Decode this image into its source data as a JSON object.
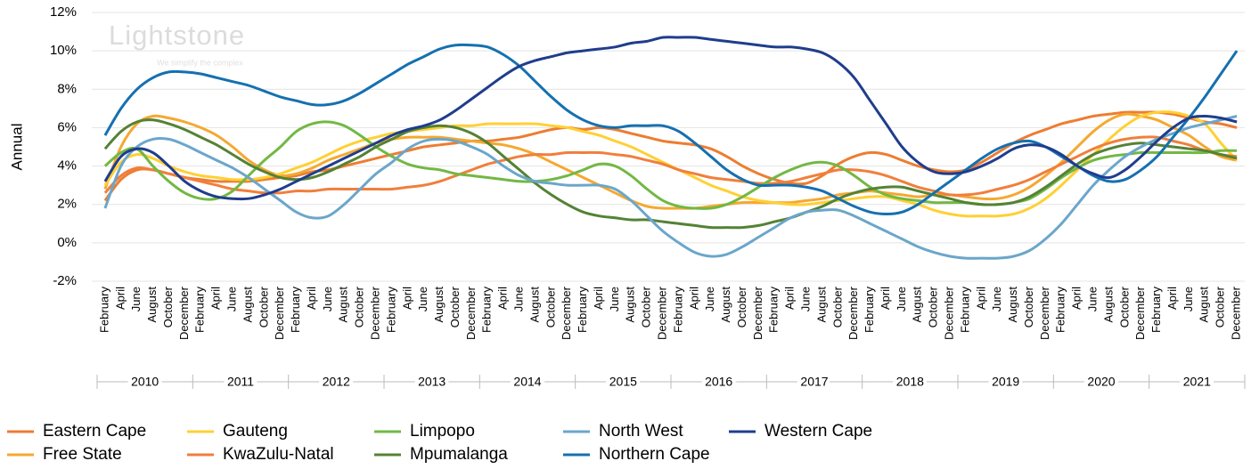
{
  "chart_data": {
    "type": "line",
    "y_label": "Annual",
    "watermark": {
      "title": "Lightstone",
      "subtitle": "We simplify the complex"
    },
    "categories": [
      "February",
      "April",
      "June",
      "August",
      "October",
      "December",
      "February",
      "April",
      "June",
      "August",
      "October",
      "December",
      "February",
      "April",
      "June",
      "August",
      "October",
      "December",
      "February",
      "April",
      "June",
      "August",
      "October",
      "December",
      "February",
      "April",
      "June",
      "August",
      "October",
      "December",
      "February",
      "April",
      "June",
      "August",
      "October",
      "December",
      "February",
      "April",
      "June",
      "August",
      "October",
      "December",
      "February",
      "April",
      "June",
      "August",
      "October",
      "December",
      "February",
      "April",
      "June",
      "August",
      "October",
      "December",
      "February",
      "April",
      "June",
      "August",
      "October",
      "December",
      "February",
      "April",
      "June",
      "August",
      "October",
      "December",
      "February",
      "April",
      "June",
      "August",
      "October",
      "December"
    ],
    "x_groups": [
      "2010",
      "2011",
      "2012",
      "2013",
      "2014",
      "2015",
      "2016",
      "2017",
      "2018",
      "2019",
      "2020",
      "2021"
    ],
    "ylim": [
      -2,
      12
    ],
    "yticks": [
      {
        "value": -2,
        "label": "-2%"
      },
      {
        "value": 0,
        "label": "0%"
      },
      {
        "value": 2,
        "label": "2%"
      },
      {
        "value": 4,
        "label": "4%"
      },
      {
        "value": 6,
        "label": "6%"
      },
      {
        "value": 8,
        "label": "8%"
      },
      {
        "value": 10,
        "label": "10%"
      },
      {
        "value": 12,
        "label": "12%"
      }
    ],
    "grid": true,
    "legend_position": "bottom",
    "series": [
      {
        "name": "Eastern Cape",
        "color": "#ed7d31",
        "values": [
          2.2,
          3.3,
          3.8,
          3.8,
          3.6,
          3.4,
          3.3,
          3.2,
          3.2,
          3.2,
          3.3,
          3.4,
          3.5,
          3.7,
          3.8,
          4.0,
          4.2,
          4.4,
          4.6,
          4.8,
          5.0,
          5.1,
          5.2,
          5.3,
          5.3,
          5.4,
          5.5,
          5.7,
          5.9,
          6.0,
          5.9,
          6.0,
          5.9,
          5.7,
          5.5,
          5.3,
          5.2,
          5.1,
          4.9,
          4.5,
          4.0,
          3.6,
          3.3,
          3.1,
          3.1,
          3.5,
          4.1,
          4.5,
          4.7,
          4.6,
          4.3,
          4.0,
          3.8,
          3.7,
          3.8,
          4.2,
          4.7,
          5.2,
          5.6,
          5.9,
          6.2,
          6.4,
          6.6,
          6.7,
          6.8,
          6.8,
          6.8,
          6.7,
          6.5,
          6.3,
          6.2,
          6.0
        ]
      },
      {
        "name": "Free State",
        "color": "#f5a830",
        "values": [
          2.8,
          5.0,
          6.2,
          6.6,
          6.5,
          6.3,
          6.0,
          5.6,
          5.0,
          4.3,
          3.8,
          3.5,
          3.6,
          3.9,
          4.3,
          4.6,
          4.9,
          5.2,
          5.4,
          5.5,
          5.5,
          5.5,
          5.4,
          5.3,
          5.2,
          5.1,
          4.9,
          4.6,
          4.2,
          3.8,
          3.4,
          3.0,
          2.6,
          2.2,
          1.9,
          1.8,
          1.8,
          1.8,
          1.9,
          2.0,
          2.1,
          2.1,
          2.1,
          2.1,
          2.2,
          2.3,
          2.5,
          2.6,
          2.7,
          2.6,
          2.5,
          2.4,
          2.5,
          2.5,
          2.4,
          2.3,
          2.3,
          2.5,
          2.9,
          3.5,
          4.2,
          5.0,
          5.8,
          6.4,
          6.7,
          6.6,
          6.4,
          6.0,
          5.6,
          5.0,
          4.5,
          4.3
        ]
      },
      {
        "name": "Gauteng",
        "color": "#ffd033",
        "values": [
          3.0,
          4.2,
          4.6,
          4.4,
          4.0,
          3.7,
          3.5,
          3.4,
          3.3,
          3.3,
          3.4,
          3.6,
          3.9,
          4.2,
          4.6,
          5.0,
          5.3,
          5.5,
          5.7,
          5.8,
          5.9,
          6.0,
          6.1,
          6.1,
          6.2,
          6.2,
          6.2,
          6.2,
          6.1,
          6.0,
          5.8,
          5.6,
          5.3,
          5.0,
          4.6,
          4.2,
          3.8,
          3.4,
          3.0,
          2.7,
          2.4,
          2.2,
          2.1,
          2.0,
          2.0,
          2.1,
          2.2,
          2.3,
          2.4,
          2.4,
          2.2,
          2.0,
          1.7,
          1.5,
          1.4,
          1.4,
          1.4,
          1.5,
          1.8,
          2.3,
          3.0,
          3.8,
          4.6,
          5.4,
          6.1,
          6.6,
          6.8,
          6.8,
          6.6,
          6.2,
          5.2,
          4.3
        ]
      },
      {
        "name": "KwaZulu-Natal",
        "color": "#f07f3c",
        "values": [
          2.6,
          3.5,
          3.9,
          3.8,
          3.6,
          3.4,
          3.2,
          3.0,
          2.8,
          2.7,
          2.6,
          2.6,
          2.7,
          2.7,
          2.8,
          2.8,
          2.8,
          2.8,
          2.8,
          2.9,
          3.0,
          3.2,
          3.5,
          3.8,
          4.1,
          4.3,
          4.5,
          4.6,
          4.6,
          4.7,
          4.7,
          4.7,
          4.6,
          4.5,
          4.3,
          4.1,
          3.8,
          3.6,
          3.4,
          3.3,
          3.2,
          3.1,
          3.1,
          3.2,
          3.4,
          3.6,
          3.8,
          3.8,
          3.7,
          3.5,
          3.2,
          2.9,
          2.7,
          2.5,
          2.5,
          2.6,
          2.8,
          3.0,
          3.3,
          3.7,
          4.1,
          4.5,
          4.9,
          5.2,
          5.4,
          5.5,
          5.5,
          5.3,
          5.1,
          4.8,
          4.6,
          4.5
        ]
      },
      {
        "name": "Limpopo",
        "color": "#72b844",
        "values": [
          4.0,
          4.7,
          4.9,
          4.0,
          3.2,
          2.6,
          2.3,
          2.3,
          2.7,
          3.5,
          4.3,
          5.0,
          5.8,
          6.2,
          6.3,
          6.1,
          5.6,
          5.0,
          4.5,
          4.1,
          3.9,
          3.8,
          3.6,
          3.5,
          3.4,
          3.3,
          3.2,
          3.2,
          3.3,
          3.5,
          3.8,
          4.1,
          4.0,
          3.5,
          2.8,
          2.2,
          1.9,
          1.8,
          1.8,
          2.0,
          2.4,
          2.9,
          3.4,
          3.8,
          4.1,
          4.2,
          4.0,
          3.5,
          2.9,
          2.5,
          2.3,
          2.2,
          2.1,
          2.1,
          2.1,
          2.0,
          2.0,
          2.1,
          2.3,
          2.8,
          3.4,
          3.9,
          4.3,
          4.5,
          4.6,
          4.7,
          4.7,
          4.7,
          4.7,
          4.7,
          4.8,
          4.8
        ]
      },
      {
        "name": "Mpumalanga",
        "color": "#548235",
        "values": [
          4.9,
          5.8,
          6.3,
          6.4,
          6.2,
          5.9,
          5.5,
          5.1,
          4.6,
          4.1,
          3.7,
          3.4,
          3.3,
          3.4,
          3.7,
          4.1,
          4.5,
          5.0,
          5.4,
          5.8,
          6.0,
          6.1,
          6.0,
          5.7,
          5.2,
          4.5,
          3.8,
          3.1,
          2.5,
          2.0,
          1.6,
          1.4,
          1.3,
          1.2,
          1.2,
          1.1,
          1.0,
          0.9,
          0.8,
          0.8,
          0.8,
          0.9,
          1.1,
          1.3,
          1.6,
          1.9,
          2.3,
          2.6,
          2.8,
          2.9,
          2.9,
          2.7,
          2.5,
          2.3,
          2.1,
          2.0,
          2.0,
          2.1,
          2.4,
          2.9,
          3.5,
          4.1,
          4.6,
          4.9,
          5.1,
          5.2,
          5.1,
          5.0,
          4.9,
          4.8,
          4.6,
          4.4
        ]
      },
      {
        "name": "North West",
        "color": "#6ba6cb",
        "values": [
          1.8,
          4.0,
          5.0,
          5.4,
          5.4,
          5.1,
          4.7,
          4.3,
          3.9,
          3.4,
          2.8,
          2.2,
          1.6,
          1.3,
          1.4,
          2.0,
          2.8,
          3.6,
          4.2,
          4.9,
          5.3,
          5.4,
          5.3,
          5.0,
          4.6,
          4.0,
          3.5,
          3.2,
          3.1,
          3.0,
          3.0,
          3.0,
          2.8,
          2.2,
          1.4,
          0.6,
          0.0,
          -0.5,
          -0.7,
          -0.6,
          -0.2,
          0.3,
          0.8,
          1.3,
          1.6,
          1.7,
          1.7,
          1.4,
          1.0,
          0.6,
          0.2,
          -0.2,
          -0.5,
          -0.7,
          -0.8,
          -0.8,
          -0.8,
          -0.7,
          -0.4,
          0.2,
          1.0,
          2.0,
          3.0,
          3.8,
          4.5,
          5.0,
          5.4,
          5.7,
          6.0,
          6.2,
          6.4,
          6.6
        ]
      },
      {
        "name": "Northern Cape",
        "color": "#1570b0",
        "values": [
          5.6,
          7.0,
          8.0,
          8.6,
          8.9,
          8.9,
          8.8,
          8.6,
          8.4,
          8.2,
          7.9,
          7.6,
          7.4,
          7.2,
          7.2,
          7.4,
          7.8,
          8.3,
          8.8,
          9.3,
          9.7,
          10.1,
          10.3,
          10.3,
          10.2,
          9.8,
          9.2,
          8.4,
          7.6,
          6.9,
          6.4,
          6.1,
          6.0,
          6.1,
          6.1,
          6.1,
          5.8,
          5.2,
          4.5,
          3.8,
          3.3,
          3.0,
          3.0,
          3.0,
          2.9,
          2.7,
          2.3,
          1.9,
          1.6,
          1.5,
          1.6,
          2.0,
          2.6,
          3.2,
          3.8,
          4.4,
          4.9,
          5.2,
          5.3,
          5.0,
          4.5,
          4.0,
          3.5,
          3.2,
          3.3,
          3.8,
          4.5,
          5.5,
          6.5,
          7.6,
          8.8,
          10.0
        ]
      },
      {
        "name": "Western Cape",
        "color": "#1f3d8c",
        "values": [
          3.2,
          4.5,
          4.9,
          4.7,
          4.0,
          3.2,
          2.7,
          2.4,
          2.3,
          2.3,
          2.5,
          2.8,
          3.2,
          3.6,
          4.0,
          4.4,
          4.8,
          5.2,
          5.6,
          5.9,
          6.1,
          6.4,
          6.9,
          7.5,
          8.1,
          8.7,
          9.2,
          9.5,
          9.7,
          9.9,
          10.0,
          10.1,
          10.2,
          10.4,
          10.5,
          10.7,
          10.7,
          10.7,
          10.6,
          10.5,
          10.4,
          10.3,
          10.2,
          10.2,
          10.1,
          9.9,
          9.4,
          8.6,
          7.4,
          6.2,
          5.0,
          4.2,
          3.7,
          3.6,
          3.7,
          4.0,
          4.4,
          4.9,
          5.1,
          5.0,
          4.6,
          4.0,
          3.6,
          3.4,
          3.8,
          4.5,
          5.3,
          6.0,
          6.5,
          6.6,
          6.5,
          6.3
        ]
      }
    ]
  }
}
